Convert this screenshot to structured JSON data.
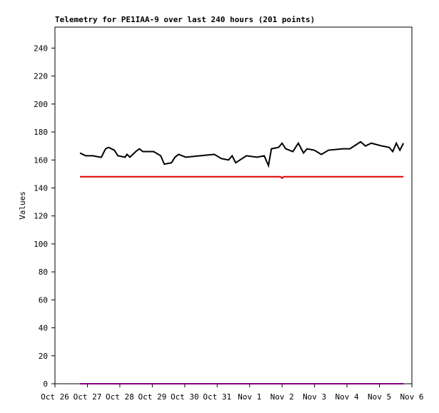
{
  "chart_data": {
    "type": "line",
    "title": "Telemetry for PE1IAA-9 over last 240 hours (201 points)",
    "y_label": "Values",
    "xlim": [
      0,
      11
    ],
    "xticks": [
      {
        "value": 0,
        "label": "Oct 26"
      },
      {
        "value": 1,
        "label": "Oct 27"
      },
      {
        "value": 2,
        "label": "Oct 28"
      },
      {
        "value": 3,
        "label": "Oct 29"
      },
      {
        "value": 4,
        "label": "Oct 30"
      },
      {
        "value": 5,
        "label": "Oct 31"
      },
      {
        "value": 6,
        "label": "Nov 1"
      },
      {
        "value": 7,
        "label": "Nov 2"
      },
      {
        "value": 8,
        "label": "Nov 3"
      },
      {
        "value": 9,
        "label": "Nov 4"
      },
      {
        "value": 10,
        "label": "Nov 5"
      },
      {
        "value": 11,
        "label": "Nov 6"
      }
    ],
    "ylim": [
      0,
      255
    ],
    "yticks": [
      0,
      20,
      40,
      60,
      80,
      100,
      120,
      140,
      160,
      180,
      200,
      220,
      240
    ],
    "grid": false,
    "series": [
      {
        "color": "#000000",
        "x": [
          0.77,
          0.86,
          0.95,
          1.17,
          1.39,
          1.43,
          1.56,
          1.65,
          1.83,
          1.94,
          2.16,
          2.22,
          2.31,
          2.49,
          2.6,
          2.71,
          3.04,
          3.26,
          3.37,
          3.59,
          3.7,
          3.81,
          4.03,
          4.47,
          4.91,
          5.13,
          5.35,
          5.46,
          5.57,
          5.9,
          6.23,
          6.45,
          6.58,
          6.67,
          6.89,
          7.0,
          7.11,
          7.33,
          7.5,
          7.66,
          7.77,
          7.99,
          8.21,
          8.43,
          8.87,
          9.09,
          9.42,
          9.57,
          9.75,
          10.08,
          10.3,
          10.41,
          10.52,
          10.63,
          10.74
        ],
        "values": [
          165,
          164,
          163,
          163,
          162,
          162,
          168,
          169,
          167,
          163,
          162,
          164,
          162,
          166,
          168,
          166,
          166,
          163,
          157,
          158,
          162,
          164,
          162,
          163,
          164,
          161,
          160,
          163,
          158,
          163,
          162,
          163,
          156,
          168,
          169,
          172,
          168,
          166,
          172,
          165,
          168,
          167,
          164,
          167,
          168,
          168,
          173,
          170,
          172,
          170,
          169,
          166,
          172,
          167,
          172
        ]
      },
      {
        "color": "#e00000",
        "x": [
          0.77,
          6.95,
          7.0,
          7.05,
          10.74
        ],
        "values": [
          148,
          148,
          147,
          148,
          148
        ]
      },
      {
        "color": "#800080",
        "x": [
          0.77,
          10.74
        ],
        "values": [
          0,
          0
        ]
      }
    ]
  }
}
